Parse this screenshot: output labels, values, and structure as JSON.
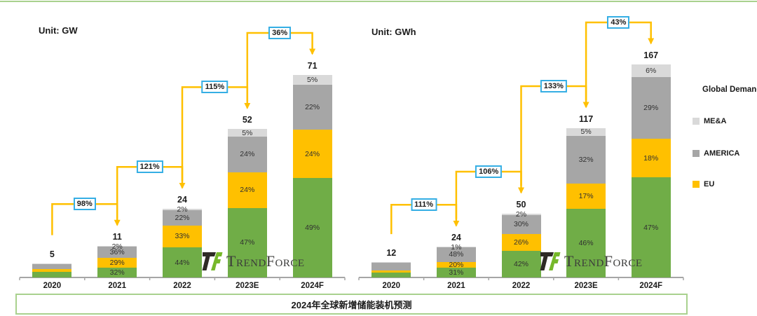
{
  "header": {
    "unit_left": "Unit: GW",
    "unit_right": "Unit: GWh"
  },
  "legend": {
    "title": "Global Demand",
    "items": [
      {
        "label": "ME&A",
        "color": "#D9D9D9"
      },
      {
        "label": "AMERICA",
        "color": "#A6A6A6"
      },
      {
        "label": "EU",
        "color": "#FFC000"
      }
    ]
  },
  "footer": {
    "title": "2024年全球新增储能装机预测"
  },
  "logo": {
    "text": "TrendForce"
  },
  "colors": {
    "green": "#70AD47",
    "eu_yellow": "#FFC000",
    "america_gray": "#A6A6A6",
    "mea_lightgray": "#D9D9D9",
    "arrow": "#FFC000",
    "arrow_label_border": "#35AEE4",
    "axis": "#A6A6A6",
    "green_rule": "#A9D18E"
  },
  "chart_data": [
    {
      "type": "bar",
      "stacked": true,
      "unit": "GW",
      "title": "Unit: GW",
      "categories": [
        "2020",
        "2021",
        "2022",
        "2023E",
        "2024F"
      ],
      "totals": [
        5,
        11,
        24,
        52,
        71
      ],
      "series": [
        {
          "name": null,
          "color_key": "green",
          "pct": [
            40,
            32,
            44,
            47,
            49
          ]
        },
        {
          "name": "EU",
          "color_key": "eu_yellow",
          "pct": [
            20,
            29,
            33,
            24,
            24
          ]
        },
        {
          "name": "AMERICA",
          "color_key": "america_gray",
          "pct": [
            36,
            36,
            22,
            24,
            22
          ]
        },
        {
          "name": "ME&A",
          "color_key": "mea_lightgray",
          "pct": [
            4,
            2,
            2,
            5,
            5
          ]
        }
      ],
      "pct_labels_visible": [
        false,
        true,
        true,
        true,
        true
      ],
      "growth": [
        "98%",
        "121%",
        "115%",
        "36%"
      ]
    },
    {
      "type": "bar",
      "stacked": true,
      "unit": "GWh",
      "title": "Unit: GWh",
      "categories": [
        "2020",
        "2021",
        "2022",
        "2023E",
        "2024F"
      ],
      "totals": [
        12,
        24,
        50,
        117,
        167
      ],
      "series": [
        {
          "name": null,
          "color_key": "green",
          "pct": [
            33,
            31,
            42,
            46,
            47
          ]
        },
        {
          "name": "EU",
          "color_key": "eu_yellow",
          "pct": [
            14,
            20,
            26,
            17,
            18
          ]
        },
        {
          "name": "AMERICA",
          "color_key": "america_gray",
          "pct": [
            48,
            48,
            30,
            32,
            29
          ]
        },
        {
          "name": "ME&A",
          "color_key": "mea_lightgray",
          "pct": [
            5,
            1,
            2,
            5,
            6
          ]
        }
      ],
      "pct_labels_visible": [
        false,
        true,
        true,
        true,
        true
      ],
      "growth": [
        "111%",
        "106%",
        "133%",
        "43%"
      ]
    }
  ]
}
